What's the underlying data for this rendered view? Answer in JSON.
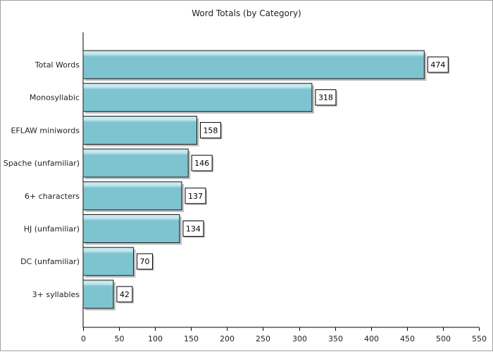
{
  "chart_data": {
    "type": "bar",
    "orientation": "horizontal",
    "title": "Word Totals (by Category)",
    "categories": [
      "Total Words",
      "Monosyllabic",
      "EFLAW miniwords",
      "Spache (unfamiliar)",
      "6+ characters",
      "HJ (unfamiliar)",
      "DC (unfamiliar)",
      "3+ syllables"
    ],
    "values": [
      474,
      318,
      158,
      146,
      137,
      134,
      70,
      42
    ],
    "xlim": [
      0,
      550
    ],
    "xticks": [
      0,
      50,
      100,
      150,
      200,
      250,
      300,
      350,
      400,
      450,
      500,
      550
    ],
    "grid": false,
    "legend": "none",
    "bar_color": "#7ec4d0",
    "bar_highlight": "#c5e9ef",
    "bar_border": "#1a1a1a"
  }
}
